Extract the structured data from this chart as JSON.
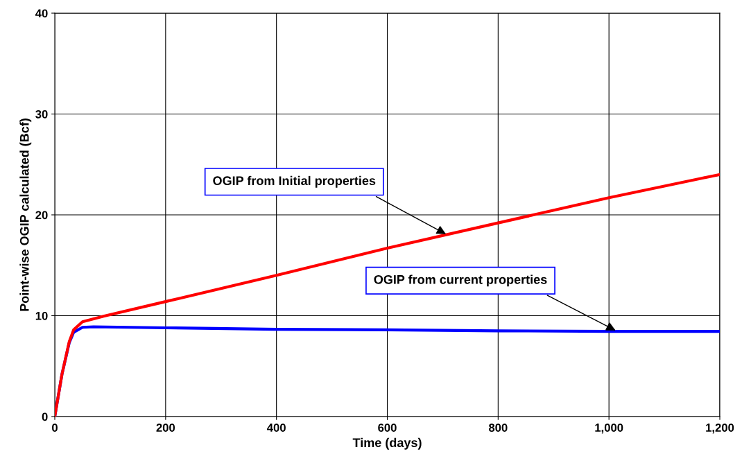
{
  "chart_data": {
    "type": "line",
    "xlabel": "Time (days)",
    "ylabel": "Point-wise OGIP calculated (Bcf)",
    "xlim": [
      0,
      1200
    ],
    "ylim": [
      0,
      40
    ],
    "xticks": [
      0,
      200,
      400,
      600,
      800,
      {
        "value": 1000,
        "label": "1,000"
      },
      {
        "value": 1200,
        "label": "1,200"
      }
    ],
    "yticks": [
      0,
      10,
      20,
      30,
      40
    ],
    "grid": true,
    "legend": false,
    "marker": "none",
    "line_style": "solid",
    "series": [
      {
        "color": "#ff0000",
        "x": [
          0,
          13,
          26,
          34,
          50,
          88,
          200,
          400,
          600,
          800,
          1000,
          1200
        ],
        "values": [
          0,
          4.2,
          7.4,
          8.6,
          9.4,
          9.95,
          11.4,
          14.0,
          16.7,
          19.2,
          21.7,
          24.0
        ]
      },
      {
        "color": "#0000ff",
        "x": [
          0,
          13,
          26,
          34,
          50,
          70,
          200,
          400,
          600,
          800,
          1000,
          1200
        ],
        "values": [
          0,
          4.2,
          7.3,
          8.35,
          8.85,
          8.9,
          8.8,
          8.65,
          8.6,
          8.5,
          8.45,
          8.45
        ]
      }
    ],
    "annotations": [
      {
        "text": "OGIP from Initial properties",
        "x": 709,
        "y": 18.0
      },
      {
        "text": "OGIP from current properties",
        "x": 1015,
        "y": 8.45
      }
    ]
  }
}
